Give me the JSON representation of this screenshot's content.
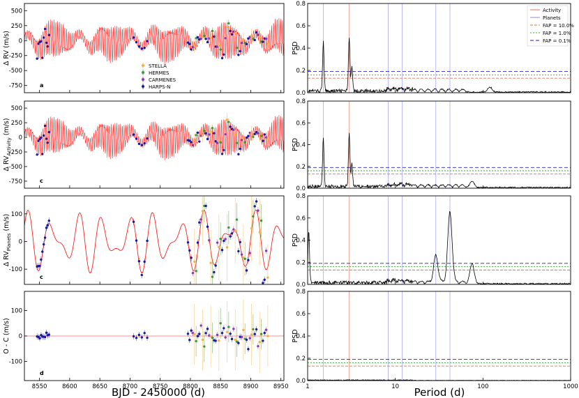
{
  "colors": {
    "activity": "#e8705a",
    "planets": "#8888ee",
    "fap10": "#e07050",
    "fap1": "#33aa33",
    "fap01": "#2222cc",
    "model": "#ff2020",
    "stella": "#f5b040",
    "hermes": "#3c9a3c",
    "carmenes": "#8a3ab0",
    "harpsn": "#1a1a9a"
  },
  "left_xlabel": "BJD - 2450000 (d)",
  "right_xlabel": "Period (d)",
  "chart_data": [
    {
      "panel": "a",
      "side": "left",
      "type": "scatter",
      "ylabel": "Δ RV (m/s)",
      "ylabel_sub": "",
      "xlim": [
        8525,
        8955
      ],
      "ylim": [
        -870,
        620
      ],
      "yticks": [
        500,
        250,
        0,
        -250,
        -500,
        -750
      ],
      "xticks": [
        8550,
        8600,
        8650,
        8700,
        8750,
        8800,
        8850,
        8900,
        8950
      ],
      "model": "activity+planets",
      "show_xticklabels": false,
      "legend": [
        "STELLA",
        "HERMES",
        "CARMENES",
        "HARPS-N"
      ]
    },
    {
      "panel": "c",
      "side": "left",
      "type": "scatter",
      "ylabel": "Δ RV",
      "ylabel_sub": "Activity",
      "ylabel_unit": " (m/s)",
      "xlim": [
        8525,
        8955
      ],
      "ylim": [
        -870,
        620
      ],
      "yticks": [
        500,
        250,
        0,
        -250,
        -500,
        -750
      ],
      "xticks": [
        8550,
        8600,
        8650,
        8700,
        8750,
        8800,
        8850,
        8900,
        8950
      ],
      "model": "activity+planets",
      "show_xticklabels": false
    },
    {
      "panel": "c",
      "side": "left",
      "type": "scatter",
      "ylabel": "Δ RV",
      "ylabel_sub": "Planets",
      "ylabel_unit": " (m/s)",
      "xlim": [
        8525,
        8955
      ],
      "ylim": [
        -155,
        165
      ],
      "yticks": [
        100,
        0,
        -100
      ],
      "xticks": [
        8550,
        8600,
        8650,
        8700,
        8750,
        8800,
        8850,
        8900,
        8950
      ],
      "model": "planets",
      "show_xticklabels": false
    },
    {
      "panel": "d",
      "side": "left",
      "type": "scatter",
      "ylabel": "O - C (m/s)",
      "ylabel_sub": "",
      "xlim": [
        8525,
        8955
      ],
      "ylim": [
        -175,
        175
      ],
      "yticks": [
        100,
        0,
        -100
      ],
      "xticks": [
        8550,
        8600,
        8650,
        8700,
        8750,
        8800,
        8850,
        8900,
        8950
      ],
      "model": "zero",
      "show_xticklabels": true
    },
    {
      "panel": "periodogram-1",
      "side": "right",
      "type": "line",
      "ylabel": "PSD",
      "xscale": "log",
      "xlim": [
        1,
        1000
      ],
      "ylim": [
        0,
        0.8
      ],
      "yticks": [
        0.0,
        0.2,
        0.4,
        0.6,
        0.8
      ],
      "fap": {
        "10%": 0.13,
        "1%": 0.16,
        "0.1%": 0.19
      },
      "peaks": [
        [
          1.51,
          0.44
        ],
        [
          2.98,
          0.48
        ],
        [
          3.2,
          0.23
        ],
        [
          120,
          0.045
        ]
      ],
      "legend": [
        "Activity",
        "Planets",
        "FAP = 10.0%",
        "FAP =  1.0%",
        "FAP =  0.1%"
      ],
      "show_xticklabels": false
    },
    {
      "panel": "periodogram-2",
      "side": "right",
      "type": "line",
      "ylabel": "PSD",
      "xscale": "log",
      "xlim": [
        1,
        1000
      ],
      "ylim": [
        0,
        0.8
      ],
      "yticks": [
        0.0,
        0.2,
        0.4,
        0.6,
        0.8
      ],
      "fap": {
        "10%": 0.13,
        "1%": 0.16,
        "0.1%": 0.19
      },
      "peaks": [
        [
          1.51,
          0.45
        ],
        [
          2.98,
          0.5
        ],
        [
          3.2,
          0.21
        ],
        [
          75,
          0.06
        ]
      ],
      "show_xticklabels": false
    },
    {
      "panel": "periodogram-3",
      "side": "right",
      "type": "line",
      "ylabel": "PSD",
      "xscale": "log",
      "xlim": [
        1,
        1000
      ],
      "ylim": [
        0,
        0.8
      ],
      "yticks": [
        0.0,
        0.2,
        0.4,
        0.6,
        0.8
      ],
      "fap": {
        "10%": 0.13,
        "1%": 0.16,
        "0.1%": 0.19
      },
      "peaks": [
        [
          1.03,
          0.47
        ],
        [
          29,
          0.24
        ],
        [
          42,
          0.63
        ],
        [
          75,
          0.18
        ]
      ],
      "show_xticklabels": false
    },
    {
      "panel": "periodogram-4",
      "side": "right",
      "type": "line",
      "ylabel": "PSD",
      "xscale": "log",
      "xlim": [
        1,
        1000
      ],
      "ylim": [
        0,
        0.8
      ],
      "yticks": [
        0.0,
        0.2,
        0.4,
        0.6,
        0.8
      ],
      "fap": {
        "10%": 0.13,
        "1%": 0.16,
        "0.1%": 0.19
      },
      "peaks": [
        [
          2.9,
          0.01
        ]
      ],
      "xticks": [
        1,
        10,
        100,
        1000
      ],
      "xticklabels": [
        "1",
        "10",
        "100",
        "1000"
      ],
      "show_xticklabels": true
    }
  ],
  "activity_periods": [
    1.51,
    2.98
  ],
  "planet_periods": [
    8.3,
    12.0,
    29.0,
    42.0
  ]
}
